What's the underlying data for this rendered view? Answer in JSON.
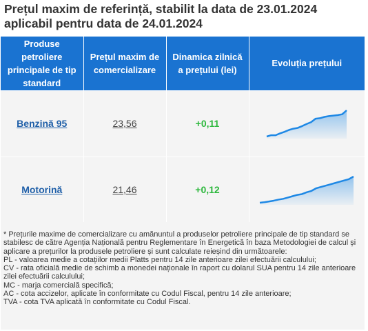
{
  "title_line1": "Prețul maxim de referință, stabilit la data de 23.01.2024",
  "title_line2": "aplicabil pentru data de 24.01.2024",
  "table": {
    "headers": [
      "Produse petroliere principale de tip standard",
      "Prețul maxim de comercializare",
      "Dinamica zilnică a prețului (lei)",
      "Evoluția prețului"
    ],
    "rows": [
      {
        "product": "Benzină 95",
        "price": "23,56",
        "change": "+0,11",
        "trend": [
          0.0,
          0.05,
          0.05,
          0.12,
          0.18,
          0.25,
          0.3,
          0.33,
          0.4,
          0.48,
          0.55,
          0.68,
          0.7,
          0.75,
          0.78,
          0.8,
          0.82,
          0.85,
          1.0
        ]
      },
      {
        "product": "Motorină",
        "price": "21,46",
        "change": "+0,12",
        "trend": [
          0.0,
          0.02,
          0.05,
          0.08,
          0.12,
          0.15,
          0.2,
          0.25,
          0.3,
          0.33,
          0.4,
          0.45,
          0.55,
          0.6,
          0.65,
          0.7,
          0.75,
          0.8,
          0.85,
          0.9,
          1.0
        ]
      }
    ]
  },
  "notes": [
    "* Prețurile maxime de comercializare cu amănuntul a produselor petroliere principale de tip standard se stabilesc de către Agenția Națională pentru Reglementare în Energetică în baza Metodologiei de calcul și aplicare a prețurilor la produsele petroliere și sunt calculate reieșind din următoarele:",
    "PL - valoarea medie a cotațiilor medii Platts pentru 14 zile anterioare zilei efectuării calculului;",
    "CV - rata oficială medie de schimb a monedei naționale în raport cu dolarul SUA pentru 14 zile anterioare zilei efectuării calculului;",
    "MC - marja comercială specifică;",
    "AC - cota accizelor, aplicate în conformitate cu Codul Fiscal, pentru 14 zile anterioare;",
    "TVA - cota TVA aplicată în conformitate cu Codul Fiscal."
  ],
  "colors": {
    "header_bg": "#1a73d1",
    "positive": "#2db83d",
    "link": "#1f5fa8",
    "spark": "#1e88e5"
  }
}
